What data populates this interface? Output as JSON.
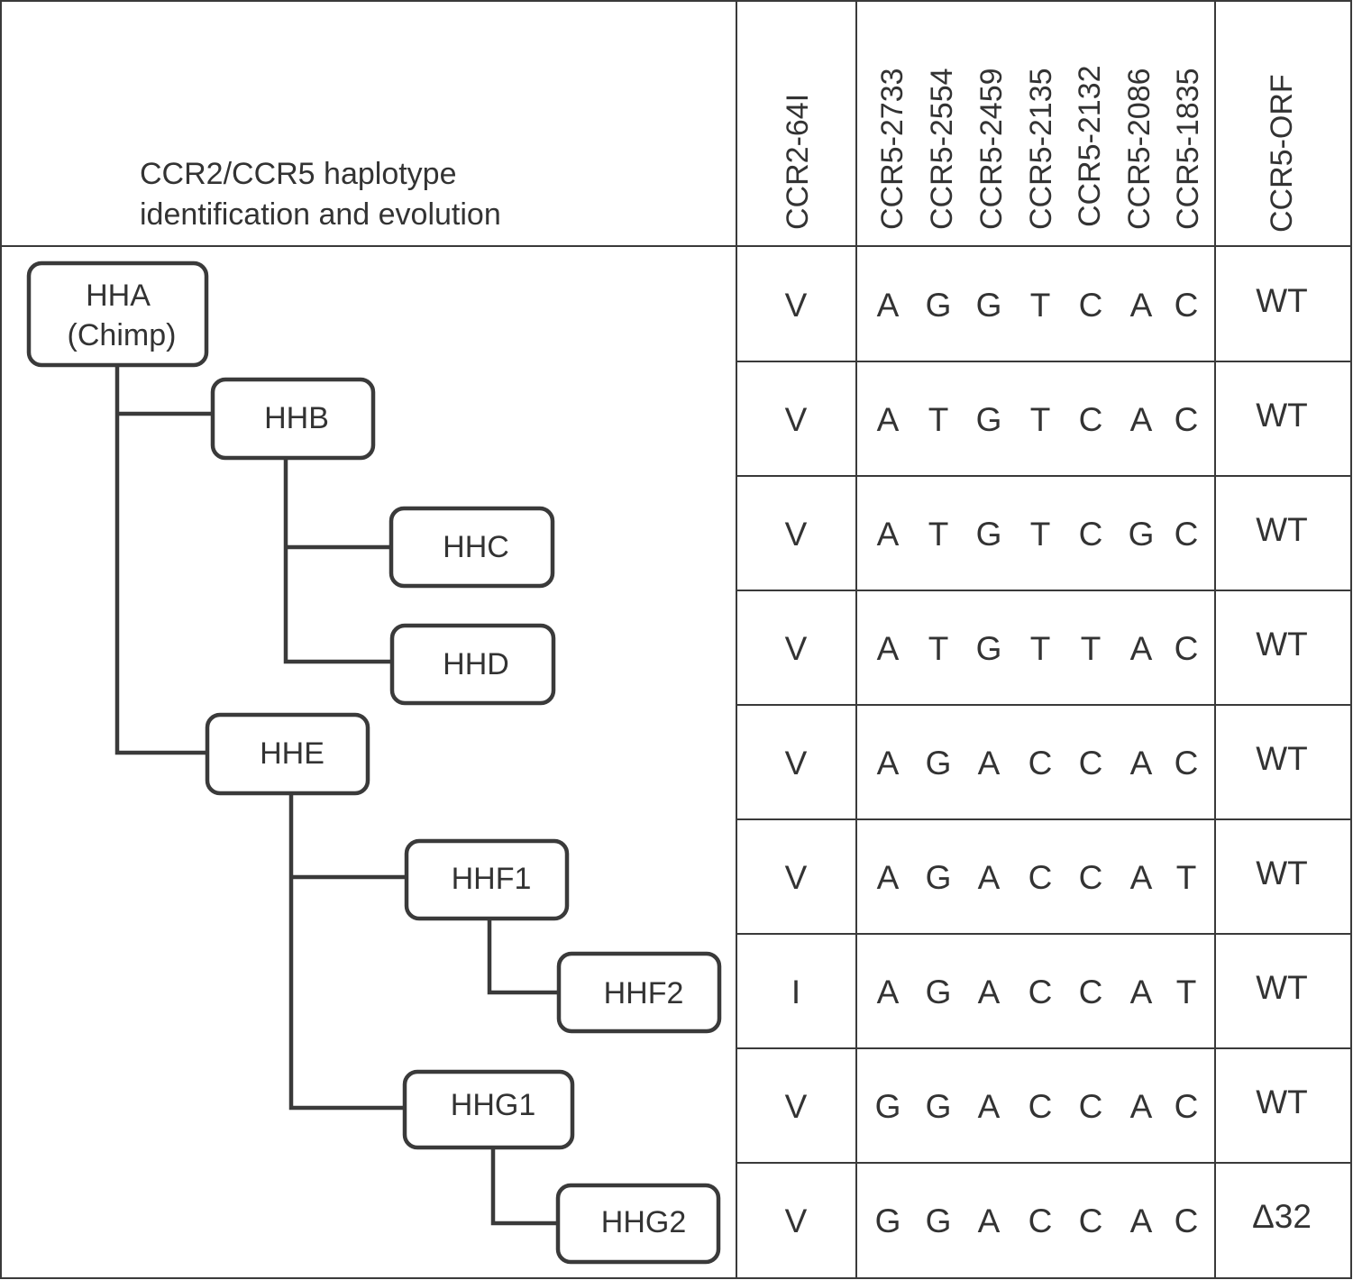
{
  "header": {
    "title_line1": "CCR2/CCR5 haplotype",
    "title_line2": "identification and evolution"
  },
  "columns": [
    "CCR2-64I",
    "CCR5-2733",
    "CCR5-2554",
    "CCR5-2459",
    "CCR5-2135",
    "CCR5-2132",
    "CCR5-2086",
    "CCR5-1835",
    "CCR5-ORF"
  ],
  "nodes": [
    {
      "label": "HHA",
      "sublabel": "(Chimp)"
    },
    {
      "label": "HHB"
    },
    {
      "label": "HHC"
    },
    {
      "label": "HHD"
    },
    {
      "label": "HHE"
    },
    {
      "label": "HHF1"
    },
    {
      "label": "HHF2"
    },
    {
      "label": "HHG1"
    },
    {
      "label": "HHG2"
    }
  ],
  "rows": [
    {
      "ccr2": "V",
      "snps": [
        "A",
        "G",
        "G",
        "T",
        "C",
        "A",
        "C"
      ],
      "orf": "WT"
    },
    {
      "ccr2": "V",
      "snps": [
        "A",
        "T",
        "G",
        "T",
        "C",
        "A",
        "C"
      ],
      "orf": "WT"
    },
    {
      "ccr2": "V",
      "snps": [
        "A",
        "T",
        "G",
        "T",
        "C",
        "G",
        "C"
      ],
      "orf": "WT"
    },
    {
      "ccr2": "V",
      "snps": [
        "A",
        "T",
        "G",
        "T",
        "T",
        "A",
        "C"
      ],
      "orf": "WT"
    },
    {
      "ccr2": "V",
      "snps": [
        "A",
        "G",
        "A",
        "C",
        "C",
        "A",
        "C"
      ],
      "orf": "WT"
    },
    {
      "ccr2": "V",
      "snps": [
        "A",
        "G",
        "A",
        "C",
        "C",
        "A",
        "T"
      ],
      "orf": "WT"
    },
    {
      "ccr2": "I",
      "snps": [
        "A",
        "G",
        "A",
        "C",
        "C",
        "A",
        "T"
      ],
      "orf": "WT"
    },
    {
      "ccr2": "V",
      "snps": [
        "G",
        "G",
        "A",
        "C",
        "C",
        "A",
        "C"
      ],
      "orf": "WT"
    },
    {
      "ccr2": "V",
      "snps": [
        "G",
        "G",
        "A",
        "C",
        "C",
        "A",
        "C"
      ],
      "orf": "Δ32"
    }
  ]
}
